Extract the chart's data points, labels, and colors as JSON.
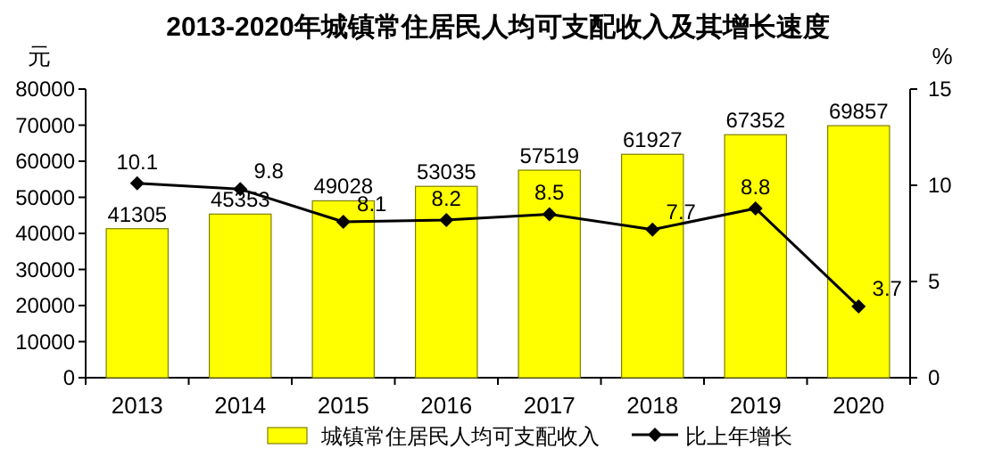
{
  "chart_data": {
    "type": "bar",
    "title": "2013-2020年城镇常住居民人均可支配收入及其增长速度",
    "ylabel": "元",
    "y2label": "%",
    "categories": [
      "2013",
      "2014",
      "2015",
      "2016",
      "2017",
      "2018",
      "2019",
      "2020"
    ],
    "series": [
      {
        "name": "城镇常住居民人均可支配收入",
        "color": "#ffff00",
        "values": [
          41305,
          45353,
          49028,
          53035,
          57519,
          61927,
          67352,
          69857
        ]
      },
      {
        "name": "比上年增长",
        "type": "line",
        "axis": "y2",
        "color": "#000000",
        "marker": "diamond",
        "values": [
          10.1,
          9.8,
          8.1,
          8.2,
          8.5,
          7.7,
          8.8,
          3.7
        ]
      }
    ],
    "ylim": [
      0,
      80000
    ],
    "yticks": [
      0,
      10000,
      20000,
      30000,
      40000,
      50000,
      60000,
      70000,
      80000
    ],
    "y2lim": [
      0,
      15
    ],
    "y2ticks": [
      0,
      5,
      10,
      15
    ],
    "data_labels": true,
    "legend": "bottom",
    "grid": false
  }
}
